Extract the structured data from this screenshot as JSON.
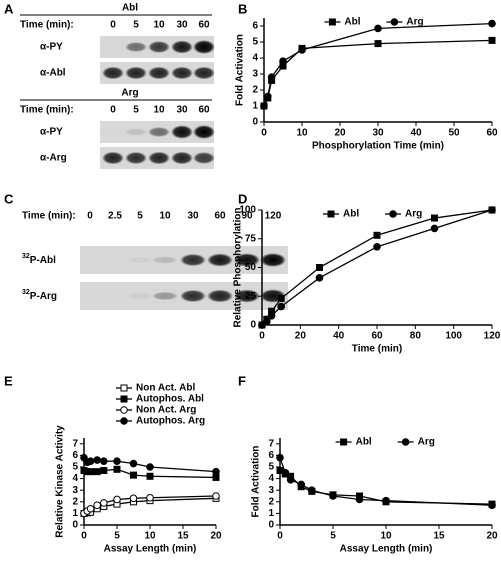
{
  "panel_letters": [
    "A",
    "B",
    "C",
    "D",
    "E",
    "F"
  ],
  "blot_a": {
    "abl": {
      "title": "Abl",
      "time_label": "Time (min):",
      "lanes": [
        "0",
        "5",
        "10",
        "30",
        "60"
      ],
      "rows": [
        "α-PY",
        "α-Abl"
      ]
    },
    "arg": {
      "title": "Arg",
      "time_label": "Time (min):",
      "lanes": [
        "0",
        "5",
        "10",
        "30",
        "60"
      ],
      "rows": [
        "α-PY",
        "α-Arg"
      ]
    }
  },
  "blot_c": {
    "time_label": "Time (min):",
    "lanes": [
      "0",
      "2.5",
      "5",
      "10",
      "30",
      "60",
      "90",
      "120"
    ],
    "rows": [
      {
        "sup": "32",
        "text": "P-Abl"
      },
      {
        "sup": "32",
        "text": "P-Arg"
      }
    ]
  },
  "chart_data": [
    {
      "type": "line",
      "xlabel": "Phosphorylation Time (min)",
      "ylabel": "Fold Activation",
      "x": [
        0,
        1,
        2,
        5,
        10,
        30,
        60
      ],
      "xlim": [
        0,
        60
      ],
      "xticks": [
        0,
        10,
        20,
        30,
        40,
        50,
        60
      ],
      "ylim": [
        0,
        6.5
      ],
      "yticks": [
        0,
        1,
        2,
        3,
        4,
        5,
        6
      ],
      "legend": "top",
      "series": [
        {
          "name": "Abl",
          "color": "#000000",
          "marker": "square",
          "filled": true,
          "values": [
            1,
            1.5,
            2.6,
            3.5,
            4.6,
            4.9,
            5.1
          ]
        },
        {
          "name": "Arg",
          "color": "#000000",
          "marker": "circle",
          "filled": true,
          "values": [
            1,
            1.6,
            2.8,
            3.8,
            4.5,
            5.85,
            6.15
          ]
        }
      ]
    },
    {
      "type": "line",
      "xlabel": "Time (min)",
      "ylabel": "Relative Phosphorylation",
      "x": [
        0,
        2.5,
        5,
        10,
        30,
        60,
        90,
        120
      ],
      "xlim": [
        0,
        120
      ],
      "xticks": [
        0,
        20,
        40,
        60,
        80,
        100,
        120
      ],
      "ylim": [
        0,
        100
      ],
      "yticks": [
        0,
        25,
        50,
        75,
        100
      ],
      "legend": "top",
      "series": [
        {
          "name": "Abl",
          "color": "#000000",
          "marker": "square",
          "filled": true,
          "values": [
            0,
            5,
            12,
            23,
            50,
            78,
            93,
            100
          ]
        },
        {
          "name": "Arg",
          "color": "#000000",
          "marker": "circle",
          "filled": true,
          "values": [
            0,
            3,
            8,
            16,
            41,
            68,
            84,
            100
          ]
        }
      ]
    },
    {
      "type": "line",
      "xlabel": "Assay Length (min)",
      "ylabel": "Relative Kinase Activity",
      "x": [
        0,
        0.5,
        1,
        2,
        3,
        5,
        7.5,
        10,
        20
      ],
      "xlim": [
        0,
        20
      ],
      "xticks": [
        0,
        5,
        10,
        15,
        20
      ],
      "ylim": [
        0,
        7.5
      ],
      "yticks": [
        0,
        1,
        2,
        3,
        4,
        5,
        6,
        7
      ],
      "legend": "outside-top",
      "series": [
        {
          "name": "Non Act. Abl",
          "color": "#000000",
          "marker": "square",
          "filled": false,
          "values": [
            1,
            1.05,
            1.1,
            1.4,
            1.6,
            1.8,
            2.0,
            2.1,
            2.3
          ]
        },
        {
          "name": "Autophos. Abl",
          "color": "#000000",
          "marker": "square",
          "filled": true,
          "values": [
            4.7,
            4.6,
            4.6,
            4.6,
            4.7,
            4.8,
            4.3,
            4.2,
            4.1
          ]
        },
        {
          "name": "Non Act. Arg",
          "color": "#000000",
          "marker": "circle",
          "filled": false,
          "values": [
            1,
            1.2,
            1.4,
            1.7,
            1.9,
            2.2,
            2.3,
            2.35,
            2.5
          ]
        },
        {
          "name": "Autophos. Arg",
          "color": "#000000",
          "marker": "circle",
          "filled": true,
          "values": [
            5.8,
            5.4,
            5.5,
            5.6,
            5.5,
            5.5,
            5.3,
            5.0,
            4.6
          ]
        }
      ]
    },
    {
      "type": "line",
      "xlabel": "Assay Length (min)",
      "ylabel": "Fold Activation",
      "x": [
        0,
        0.5,
        1,
        2,
        3,
        5,
        7.5,
        10,
        20
      ],
      "xlim": [
        0,
        20
      ],
      "xticks": [
        0,
        5,
        10,
        15,
        20
      ],
      "ylim": [
        0,
        7.5
      ],
      "yticks": [
        0,
        1,
        2,
        3,
        4,
        5,
        6,
        7
      ],
      "legend": "top",
      "series": [
        {
          "name": "Abl",
          "color": "#000000",
          "marker": "square",
          "filled": true,
          "values": [
            4.7,
            4.4,
            4.2,
            3.3,
            2.9,
            2.6,
            2.5,
            2.0,
            1.8
          ]
        },
        {
          "name": "Arg",
          "color": "#000000",
          "marker": "circle",
          "filled": true,
          "values": [
            5.8,
            4.5,
            3.9,
            3.5,
            3.0,
            2.5,
            2.2,
            2.1,
            1.7
          ]
        }
      ]
    }
  ]
}
